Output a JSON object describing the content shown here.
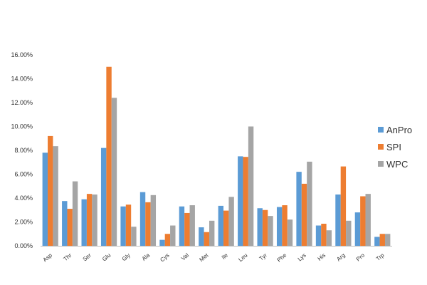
{
  "chart_data": {
    "type": "bar",
    "categories": [
      "Asp",
      "Thr",
      "Ser",
      "Glu",
      "Gly",
      "Ala",
      "Cys",
      "Val",
      "Met",
      "Ile",
      "Leu",
      "Tyr",
      "Phe",
      "Lys",
      "His",
      "Arg",
      "Pro",
      "Trp"
    ],
    "series": [
      {
        "name": "AnPro",
        "color": "#5B9BD5",
        "values": [
          7.8,
          3.75,
          3.9,
          8.2,
          3.3,
          4.5,
          0.5,
          3.3,
          1.55,
          3.35,
          7.5,
          3.15,
          3.25,
          6.2,
          1.7,
          4.3,
          2.8,
          0.75
        ]
      },
      {
        "name": "SPI",
        "color": "#ED7D31",
        "values": [
          9.2,
          3.1,
          4.35,
          15.0,
          3.45,
          3.65,
          1.0,
          2.75,
          1.15,
          2.95,
          7.45,
          3.0,
          3.4,
          5.2,
          1.85,
          6.65,
          4.15,
          1.0
        ]
      },
      {
        "name": "WPC",
        "color": "#A5A5A5",
        "values": [
          8.35,
          5.4,
          4.3,
          12.4,
          1.6,
          4.25,
          1.7,
          3.4,
          2.1,
          4.1,
          10.0,
          2.5,
          2.2,
          7.05,
          1.3,
          2.1,
          4.35,
          1.0
        ]
      }
    ],
    "y_ticks": [
      "0.00%",
      "2.00%",
      "4.00%",
      "6.00%",
      "8.00%",
      "10.00%",
      "12.00%",
      "14.00%",
      "16.00%"
    ],
    "ylim": [
      0,
      16
    ],
    "title": "",
    "xlabel": "",
    "ylabel": "",
    "grid": false,
    "legend": "right"
  }
}
